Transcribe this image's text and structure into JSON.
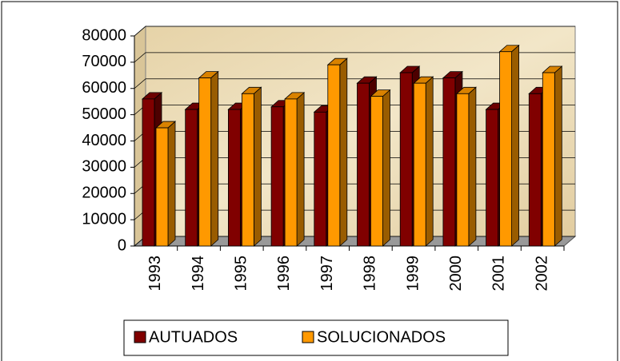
{
  "chart_data": {
    "type": "bar3d",
    "categories": [
      "1993",
      "1994",
      "1995",
      "1996",
      "1997",
      "1998",
      "1999",
      "2000",
      "2001",
      "2002"
    ],
    "series": [
      {
        "name": "AUTUADOS",
        "color": "#800000",
        "values": [
          56000,
          52000,
          52000,
          53000,
          51000,
          62000,
          66000,
          64000,
          52000,
          58000
        ]
      },
      {
        "name": "SOLUCIONADOS",
        "color": "#ff9900",
        "values": [
          45000,
          64000,
          58000,
          56000,
          69000,
          57000,
          62000,
          58000,
          74000,
          66000
        ]
      }
    ],
    "ylim": [
      0,
      80000
    ],
    "yticks": [
      0,
      10000,
      20000,
      30000,
      40000,
      50000,
      60000,
      70000,
      80000
    ],
    "grid": true,
    "legend": "bottom"
  }
}
